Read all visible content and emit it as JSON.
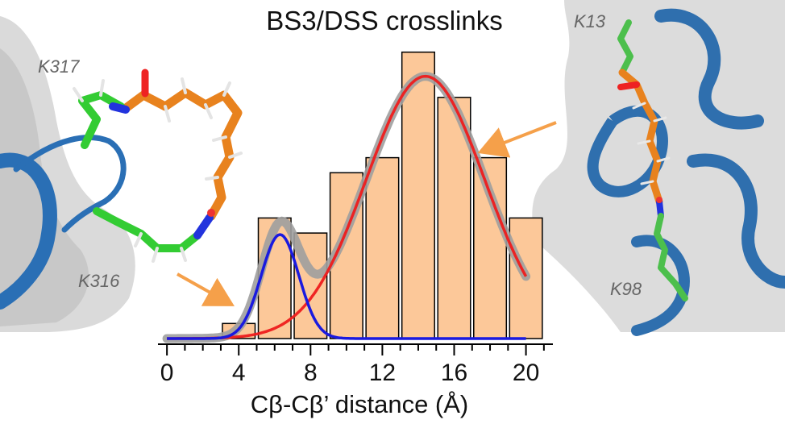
{
  "chart_data": {
    "type": "bar",
    "title": "BS3/DSS crosslinks",
    "xlabel": "Cβ-Cβ’ distance (Å)",
    "ylabel": "",
    "bin_width": 2,
    "categories": [
      "4",
      "6",
      "8",
      "10",
      "12",
      "14",
      "16",
      "18",
      "20"
    ],
    "values": [
      1,
      8,
      7,
      11,
      12,
      19,
      16,
      12,
      8
    ],
    "xlim": [
      -0.5,
      21.5
    ],
    "ylim": [
      0,
      20
    ],
    "xticks": [
      "0",
      "4",
      "8",
      "12",
      "16",
      "20"
    ],
    "grid": false,
    "legend": "none",
    "fits": [
      {
        "id": "short-component",
        "color": "#1a1adf",
        "amplitude": 6.9,
        "mean": 6.3,
        "sd": 1.05
      },
      {
        "id": "long-component",
        "color": "#ee1c1c",
        "amplitude": 17.4,
        "mean": 14.4,
        "sd": 3.3
      },
      {
        "id": "sum",
        "color": "#9e9e9e"
      }
    ],
    "colors": {
      "bar_fill": "#fcc899",
      "bar_edge": "#000000",
      "arrow": "#f5a04a"
    }
  },
  "annotations": {
    "left_upper_residue": "K317",
    "left_lower_residue": "K316",
    "right_upper_residue": "K13",
    "right_lower_residue": "K98"
  }
}
